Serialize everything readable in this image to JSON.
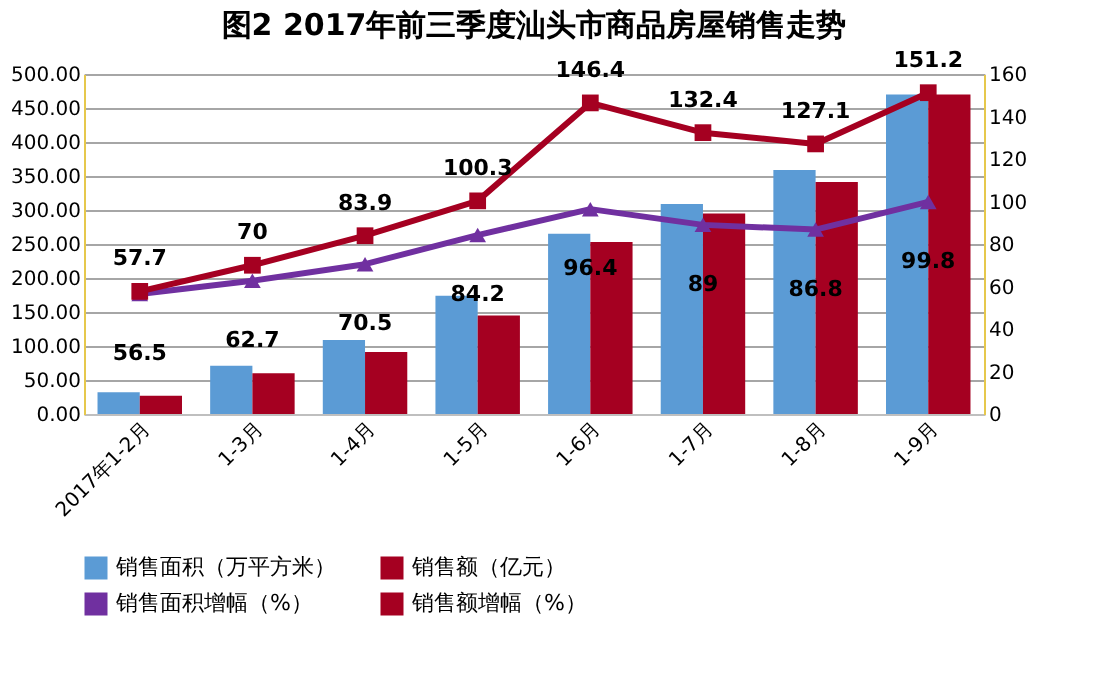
{
  "chart_data": {
    "type": "bar",
    "title": "图2  2017年前三季度汕头市商品房屋销售走势",
    "categories": [
      "2017年1-2月",
      "1-3月",
      "1-4月",
      "1-5月",
      "1-6月",
      "1-7月",
      "1-8月",
      "1-9月"
    ],
    "series": [
      {
        "name": "销售面积（万平方米）",
        "color": "#5b9bd5",
        "values": [
          32,
          71,
          109,
          174,
          265,
          309,
          359,
          470
        ]
      },
      {
        "name": "销售额（亿元）",
        "color": "#a50021",
        "values": [
          27,
          60,
          91,
          145,
          253,
          295,
          341,
          470
        ]
      },
      {
        "name": "销售面积增幅（%）",
        "type": "line",
        "axis": "y2",
        "color": "#7030a0",
        "marker": "triangle",
        "data_labels": true,
        "values": [
          56.5,
          62.7,
          70.5,
          84.2,
          96.4,
          89,
          86.8,
          99.8
        ]
      },
      {
        "name": "销售额增幅（%）",
        "type": "line",
        "axis": "y2",
        "color": "#a50021",
        "marker": "square",
        "data_labels": true,
        "values": [
          57.7,
          70,
          83.9,
          100.3,
          146.4,
          132.4,
          127.1,
          151.2
        ]
      }
    ],
    "ylim": [
      0,
      500
    ],
    "yticks": [
      {
        "value": 0,
        "label": "0.00"
      },
      {
        "value": 50,
        "label": "50.00"
      },
      {
        "value": 100,
        "label": "100.00"
      },
      {
        "value": 150,
        "label": "150.00"
      },
      {
        "value": 200,
        "label": "200.00"
      },
      {
        "value": 250,
        "label": "250.00"
      },
      {
        "value": 300,
        "label": "300.00"
      },
      {
        "value": 350,
        "label": "350.00"
      },
      {
        "value": 400,
        "label": "400.00"
      },
      {
        "value": 450,
        "label": "450.00"
      },
      {
        "value": 500,
        "label": "500.00"
      }
    ],
    "y2lim": [
      0,
      160
    ],
    "y2ticks": [
      0,
      20,
      40,
      60,
      80,
      100,
      120,
      140,
      160
    ],
    "grid": "y",
    "legend": "bottom",
    "line_style": "solid"
  }
}
